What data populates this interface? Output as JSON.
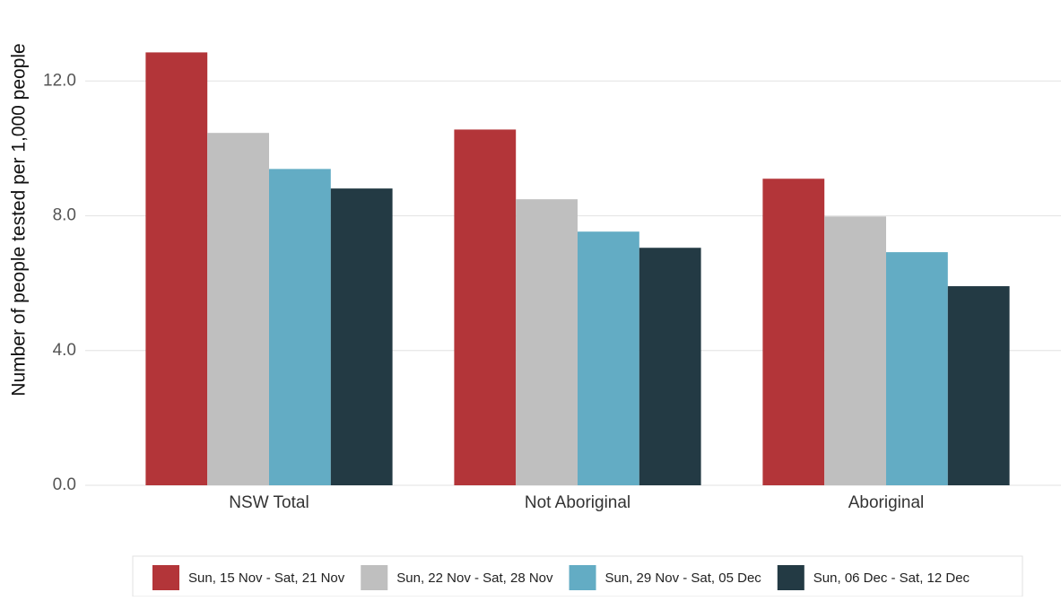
{
  "chart_data": {
    "type": "bar",
    "y_label": "Number of people tested per 1,000 people",
    "categories": [
      "NSW Total",
      "Not Aboriginal",
      "Aboriginal"
    ],
    "series": [
      {
        "name": "Sun, 15 Nov - Sat, 21 Nov",
        "color": "#b33539",
        "values": [
          12.85,
          10.56,
          9.1
        ]
      },
      {
        "name": "Sun, 22 Nov - Sat, 28 Nov",
        "color": "#bfbfbf",
        "values": [
          10.46,
          8.49,
          7.98
        ]
      },
      {
        "name": "Sun, 29 Nov - Sat, 05 Dec",
        "color": "#63acc4",
        "values": [
          9.39,
          7.53,
          6.92
        ]
      },
      {
        "name": "Sun, 06 Dec - Sat, 12 Dec",
        "color": "#233a44",
        "values": [
          8.81,
          7.05,
          5.91
        ]
      }
    ],
    "ylim": [
      0,
      13.5
    ],
    "yticks": [
      {
        "value": 0,
        "label": "0.0"
      },
      {
        "value": 4,
        "label": "4.0"
      },
      {
        "value": 8,
        "label": "8.0"
      },
      {
        "value": 12,
        "label": "12.0"
      }
    ],
    "grid": true,
    "legend": "bottom"
  }
}
